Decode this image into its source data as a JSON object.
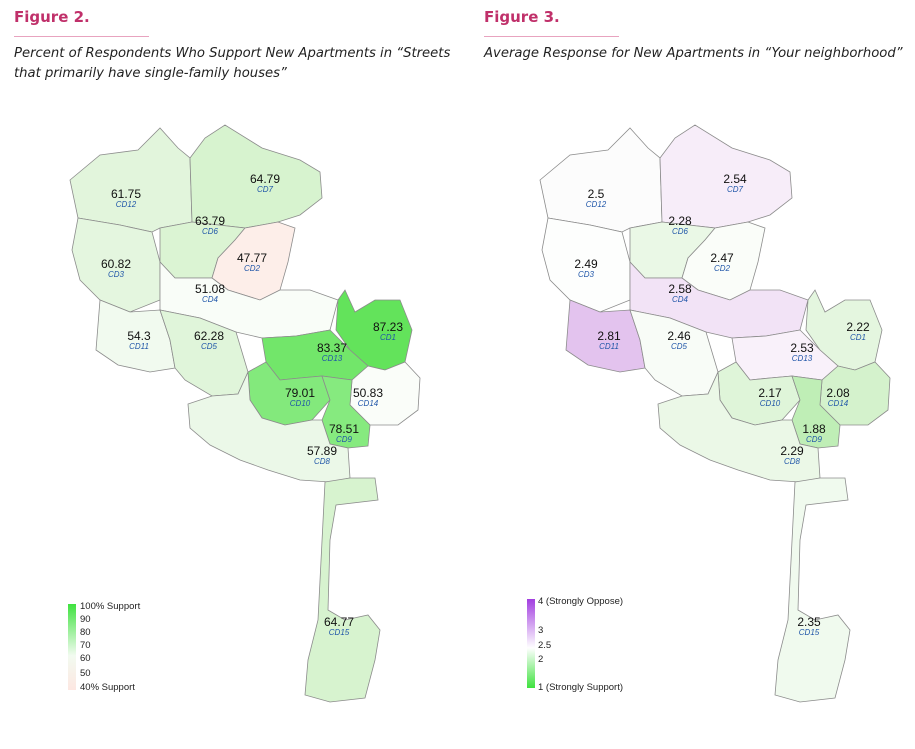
{
  "figure2": {
    "heading": "Figure 2.",
    "caption_line1": "Percent of Respondents Who Support New Apartments in “Streets",
    "caption_line2": "that primarily have single-family houses”",
    "legend": {
      "labels": [
        "100% Support",
        "90",
        "80",
        "70",
        "60",
        "50",
        "40% Support"
      ],
      "colors": {
        "top": "#3fe23f",
        "mid": "#f2fbf0",
        "bottom": "#fde7e2"
      }
    },
    "districts": [
      {
        "value": "61.75",
        "cd": "CD12",
        "color": "#e2f5dc"
      },
      {
        "value": "64.79",
        "cd": "CD7",
        "color": "#d7f3cf"
      },
      {
        "value": "63.79",
        "cd": "CD6",
        "color": "#dbf4d3"
      },
      {
        "value": "47.77",
        "cd": "CD2",
        "color": "#fdeee9"
      },
      {
        "value": "60.82",
        "cd": "CD3",
        "color": "#e4f6df"
      },
      {
        "value": "51.08",
        "cd": "CD4",
        "color": "#f9fdf8"
      },
      {
        "value": "54.3",
        "cd": "CD11",
        "color": "#f1faef"
      },
      {
        "value": "62.28",
        "cd": "CD5",
        "color": "#e0f5da"
      },
      {
        "value": "87.23",
        "cd": "CD1",
        "color": "#63e35b"
      },
      {
        "value": "83.37",
        "cd": "CD13",
        "color": "#72e66a"
      },
      {
        "value": "79.01",
        "cd": "CD10",
        "color": "#83e97c"
      },
      {
        "value": "50.83",
        "cd": "CD14",
        "color": "#fafdf9"
      },
      {
        "value": "78.51",
        "cd": "CD9",
        "color": "#86ea7f"
      },
      {
        "value": "57.89",
        "cd": "CD8",
        "color": "#ebf8e8"
      },
      {
        "value": "64.77",
        "cd": "CD15",
        "color": "#d7f3cf"
      }
    ]
  },
  "figure3": {
    "heading": "Figure 3.",
    "caption_line1": "Average Response for New Apartments in “Your neighborhood”",
    "legend": {
      "labels": [
        "4 (Strongly Oppose)",
        "3",
        "2.5",
        "2",
        "1 (Strongly Support)"
      ],
      "colors": {
        "top": "#a23ee0",
        "mid": "#ffffff",
        "bottom": "#3fe23f"
      }
    },
    "districts": [
      {
        "value": "2.5",
        "cd": "CD12",
        "color": "#fcfcfc"
      },
      {
        "value": "2.54",
        "cd": "CD7",
        "color": "#f7edf9"
      },
      {
        "value": "2.28",
        "cd": "CD6",
        "color": "#eaf8e6"
      },
      {
        "value": "2.47",
        "cd": "CD2",
        "color": "#fafdf9"
      },
      {
        "value": "2.49",
        "cd": "CD3",
        "color": "#fdfefd"
      },
      {
        "value": "2.58",
        "cd": "CD4",
        "color": "#f2e3f6"
      },
      {
        "value": "2.81",
        "cd": "CD11",
        "color": "#e3c3ee"
      },
      {
        "value": "2.46",
        "cd": "CD5",
        "color": "#f8fcf7"
      },
      {
        "value": "2.22",
        "cd": "CD1",
        "color": "#e4f6df"
      },
      {
        "value": "2.53",
        "cd": "CD13",
        "color": "#f9f1fa"
      },
      {
        "value": "2.17",
        "cd": "CD10",
        "color": "#dff5d9"
      },
      {
        "value": "2.08",
        "cd": "CD14",
        "color": "#d4f2cc"
      },
      {
        "value": "1.88",
        "cd": "CD9",
        "color": "#bfeeb6"
      },
      {
        "value": "2.29",
        "cd": "CD8",
        "color": "#ebf8e7"
      },
      {
        "value": "2.35",
        "cd": "CD15",
        "color": "#f0faee"
      }
    ]
  }
}
